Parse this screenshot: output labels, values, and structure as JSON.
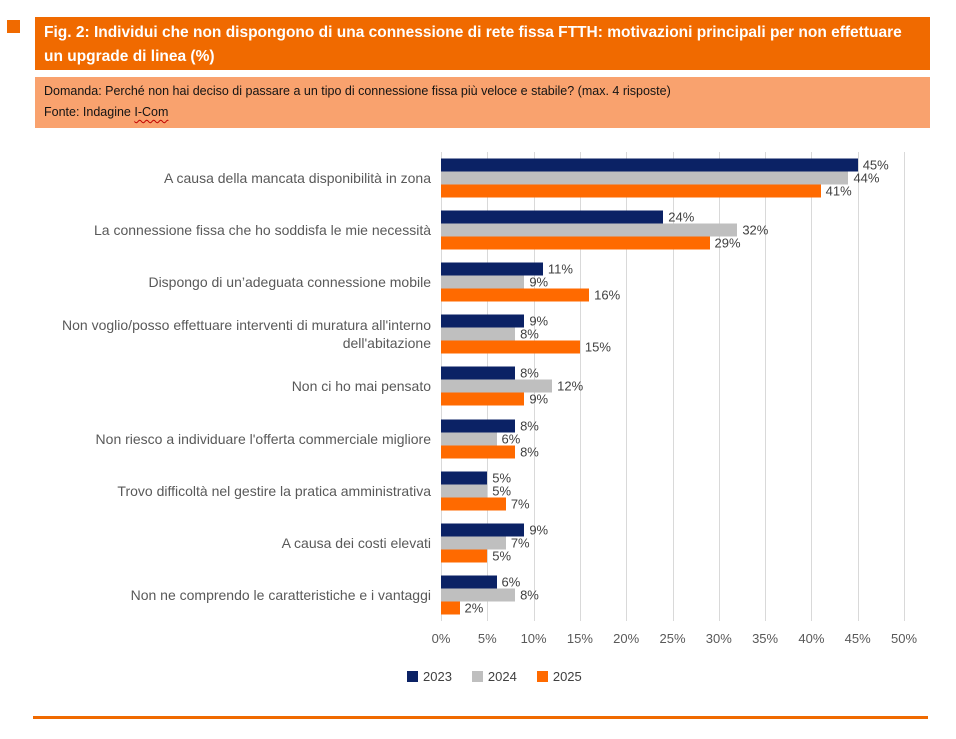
{
  "header": {
    "title": "Fig. 2: Individui che non dispongono di una connessione di rete fissa FTTH: motivazioni principali per non effettuare un upgrade di linea (%)",
    "question": "Domanda: Perché non hai deciso di passare a un tipo di connessione fissa più veloce e stabile? (max. 4 risposte)",
    "source_prefix": "Fonte: Indagine ",
    "source_name": "I-Com"
  },
  "colors": {
    "banner_orange": "#F06A00",
    "subbanner_orange": "#F9A26E",
    "bar_navy": "#0B2265",
    "bar_gray": "#BFBFBF",
    "bar_orange": "#FF6A00",
    "gridline": "#D9D9D9",
    "axis_text": "#595959",
    "value_text": "#404040",
    "title_text": "#FFFFFF"
  },
  "chart_data": {
    "type": "bar",
    "orientation": "horizontal",
    "title": "",
    "xlabel": "",
    "ylabel": "",
    "xlim": [
      0,
      50
    ],
    "grid": true,
    "legend_position": "bottom",
    "value_suffix": "%",
    "ticks": [
      "0%",
      "5%",
      "10%",
      "15%",
      "20%",
      "25%",
      "30%",
      "35%",
      "40%",
      "45%",
      "50%"
    ],
    "categories": [
      "A causa della mancata disponibilità in zona",
      "La connessione fissa che ho soddisfa le mie necessità",
      "Dispongo di un’adeguata connessione mobile",
      "Non voglio/posso effettuare interventi di muratura all'interno dell'abitazione",
      "Non ci ho mai pensato",
      "Non riesco a individuare l'offerta commerciale migliore",
      "Trovo difficoltà nel gestire la pratica amministrativa",
      "A causa dei costi elevati",
      "Non ne comprendo le caratteristiche e i vantaggi"
    ],
    "series": [
      {
        "name": "2023",
        "color": "#0B2265",
        "values": [
          45,
          24,
          11,
          9,
          8,
          8,
          5,
          9,
          6
        ]
      },
      {
        "name": "2024",
        "color": "#BFBFBF",
        "values": [
          44,
          32,
          9,
          8,
          12,
          6,
          5,
          7,
          8
        ]
      },
      {
        "name": "2025",
        "color": "#FF6A00",
        "values": [
          41,
          29,
          16,
          15,
          9,
          8,
          7,
          5,
          2
        ]
      }
    ]
  }
}
